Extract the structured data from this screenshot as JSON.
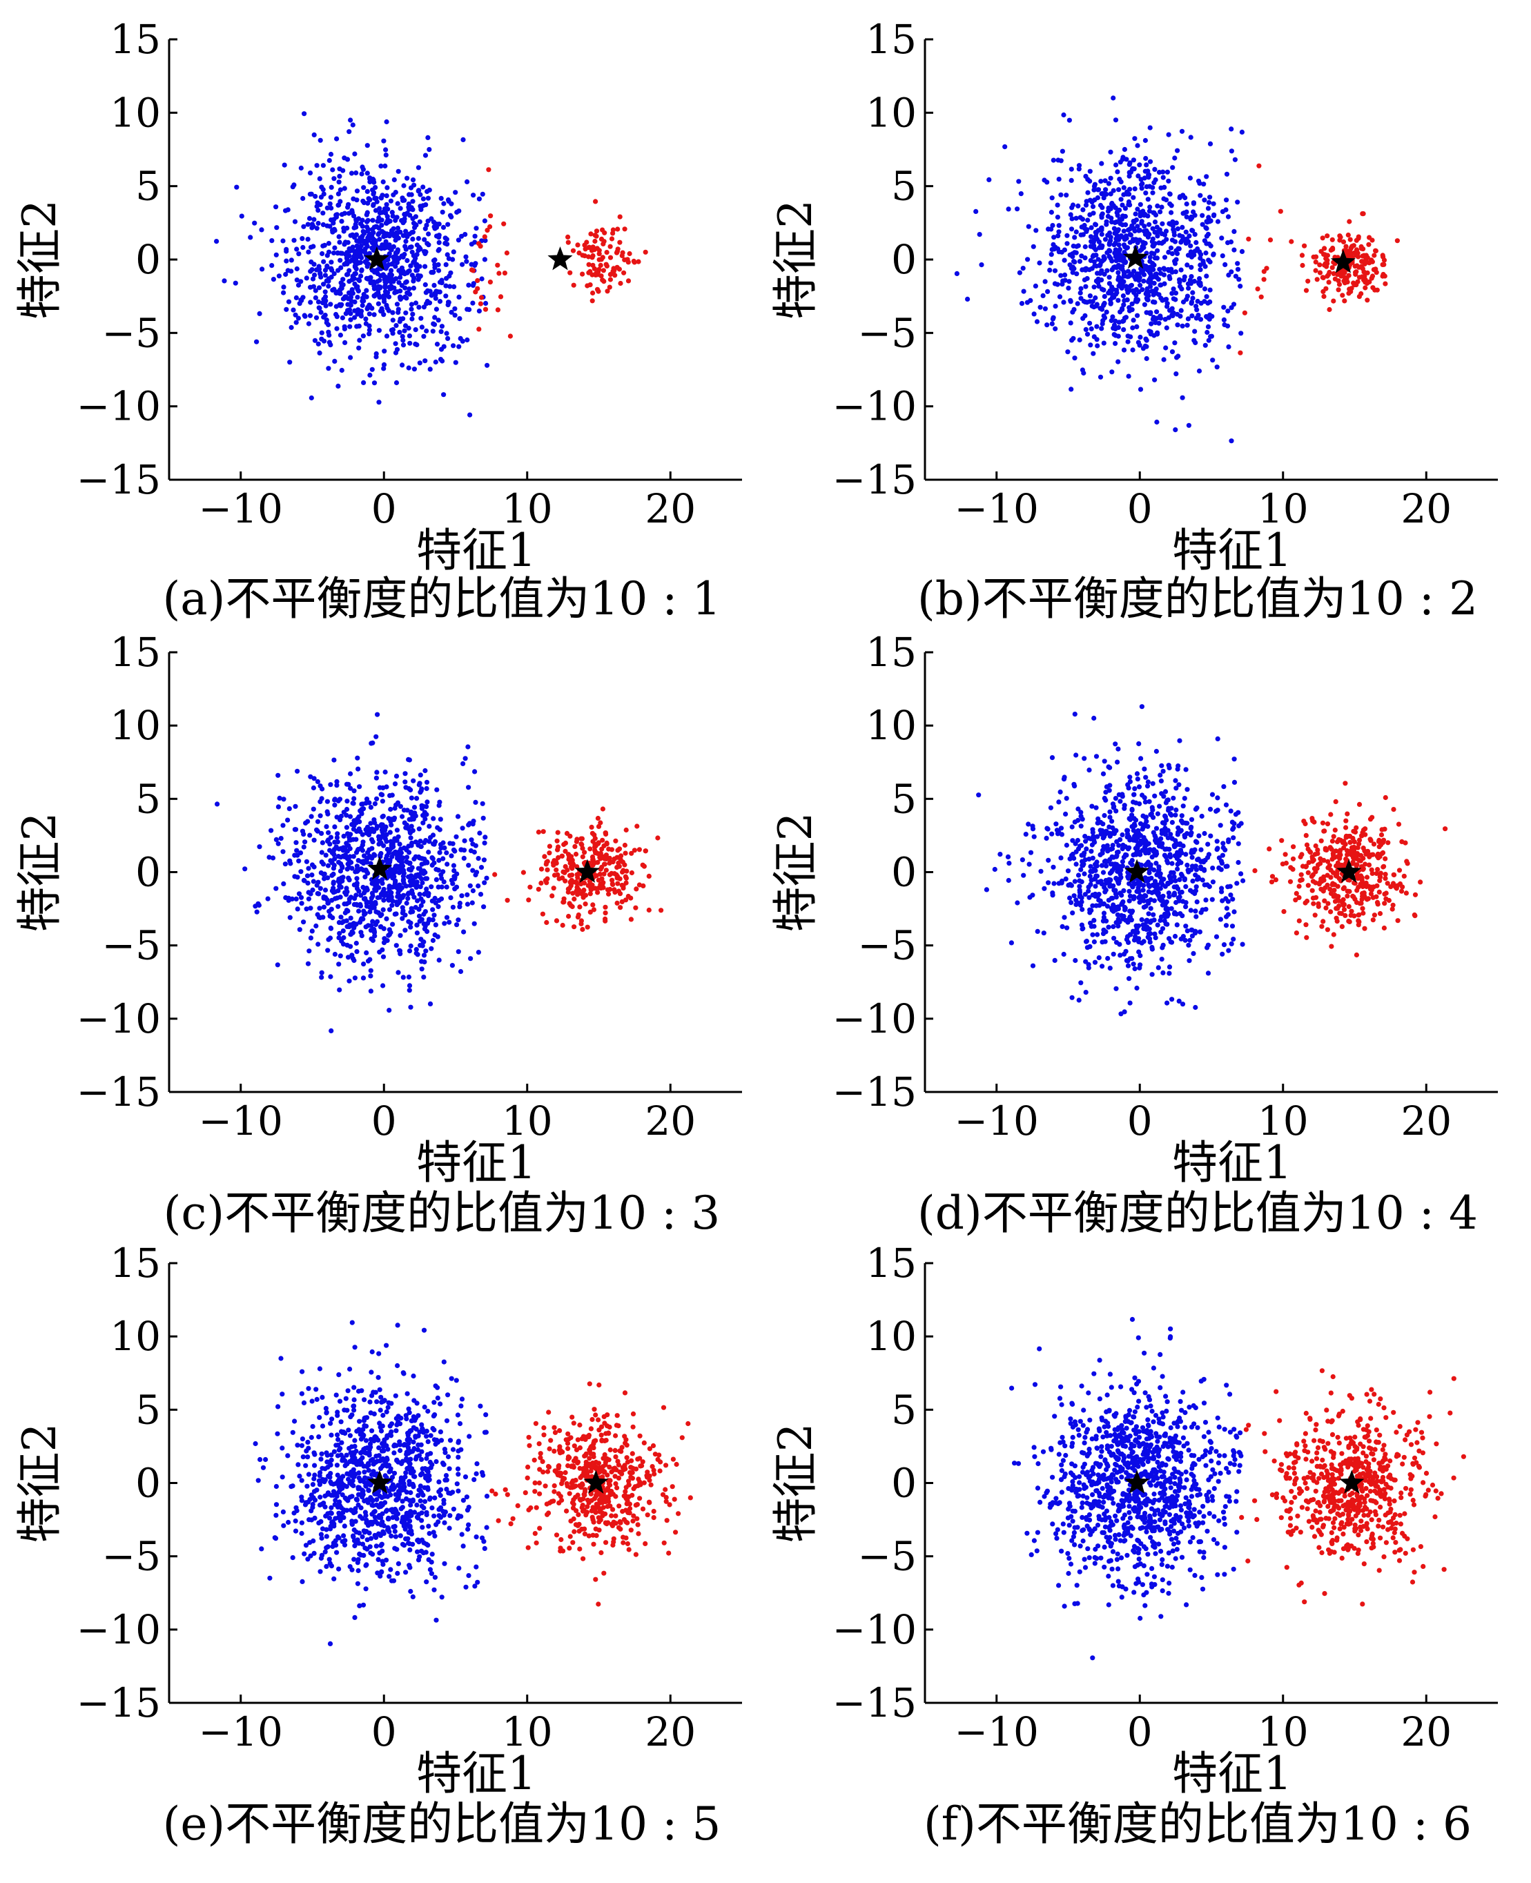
{
  "colors": {
    "majority": "#0a0ae6",
    "minority": "#e61414",
    "center": "#000000",
    "axis": "#000000"
  },
  "chart_data": [
    {
      "type": "scatter",
      "caption": "(a)不平衡度的比值为10 : 1",
      "xlabel": "特征1",
      "ylabel": "特征2",
      "xlim": [
        -15,
        25
      ],
      "ylim": [
        -15,
        15
      ],
      "xticks": [
        "−10",
        "0",
        "10",
        "20"
      ],
      "yticks": [
        "15",
        "10",
        "5",
        "0",
        "−5",
        "−10",
        "−15"
      ],
      "series": [
        {
          "role": "majority",
          "color": "#0a0ae6",
          "n_points": 1000,
          "center": [
            -0.5,
            0
          ],
          "spread": [
            3.2,
            3.4
          ]
        },
        {
          "role": "minority",
          "color": "#e61414",
          "n_points": 100,
          "center": [
            15.3,
            0
          ],
          "spread": [
            1.2,
            1.1
          ],
          "tail": {
            "n_points": 25,
            "x_range": [
              6,
              9
            ]
          }
        }
      ],
      "centers": [
        [
          -0.5,
          0
        ],
        [
          12.3,
          0
        ]
      ]
    },
    {
      "type": "scatter",
      "caption": "(b)不平衡度的比值为10 : 2",
      "xlabel": "特征1",
      "ylabel": "特征2",
      "xlim": [
        -15,
        25
      ],
      "ylim": [
        -15,
        15
      ],
      "xticks": [
        "−10",
        "0",
        "10",
        "20"
      ],
      "yticks": [
        "15",
        "10",
        "5",
        "0",
        "−5",
        "−10",
        "−15"
      ],
      "series": [
        {
          "role": "majority",
          "color": "#0a0ae6",
          "n_points": 1000,
          "center": [
            -0.3,
            0
          ],
          "spread": [
            3.4,
            3.5
          ]
        },
        {
          "role": "minority",
          "color": "#e61414",
          "n_points": 200,
          "center": [
            14.5,
            -0.2
          ],
          "spread": [
            1.3,
            1.2
          ],
          "tail": {
            "n_points": 12,
            "x_range": [
              7,
              11
            ]
          }
        }
      ],
      "centers": [
        [
          -0.3,
          0.1
        ],
        [
          14.2,
          -0.2
        ]
      ]
    },
    {
      "type": "scatter",
      "caption": "(c)不平衡度的比值为10 : 3",
      "xlabel": "特征1",
      "ylabel": "特征2",
      "xlim": [
        -15,
        25
      ],
      "ylim": [
        -15,
        15
      ],
      "xticks": [
        "−10",
        "0",
        "10",
        "20"
      ],
      "yticks": [
        "15",
        "10",
        "5",
        "0",
        "−5",
        "−10",
        "−15"
      ],
      "series": [
        {
          "role": "majority",
          "color": "#0a0ae6",
          "n_points": 1000,
          "center": [
            -0.3,
            0.1
          ],
          "spread": [
            3.3,
            3.3
          ]
        },
        {
          "role": "minority",
          "color": "#e61414",
          "n_points": 300,
          "center": [
            14.2,
            0
          ],
          "spread": [
            1.8,
            1.7
          ]
        }
      ],
      "centers": [
        [
          -0.3,
          0.2
        ],
        [
          14.2,
          0
        ]
      ]
    },
    {
      "type": "scatter",
      "caption": "(d)不平衡度的比值为10 : 4",
      "xlabel": "特征1",
      "ylabel": "特征2",
      "xlim": [
        -15,
        25
      ],
      "ylim": [
        -15,
        15
      ],
      "xticks": [
        "−10",
        "0",
        "10",
        "20"
      ],
      "yticks": [
        "15",
        "10",
        "5",
        "0",
        "−5",
        "−10",
        "−15"
      ],
      "series": [
        {
          "role": "majority",
          "color": "#0a0ae6",
          "n_points": 1000,
          "center": [
            -0.2,
            0
          ],
          "spread": [
            3.3,
            3.3
          ]
        },
        {
          "role": "minority",
          "color": "#e61414",
          "n_points": 400,
          "center": [
            14.6,
            0
          ],
          "spread": [
            2.0,
            2.0
          ]
        }
      ],
      "centers": [
        [
          -0.2,
          0
        ],
        [
          14.6,
          0
        ]
      ]
    },
    {
      "type": "scatter",
      "caption": "(e)不平衡度的比值为10 : 5",
      "xlabel": "特征1",
      "ylabel": "特征2",
      "xlim": [
        -15,
        25
      ],
      "ylim": [
        -15,
        15
      ],
      "xticks": [
        "−10",
        "0",
        "10",
        "20"
      ],
      "yticks": [
        "15",
        "10",
        "5",
        "0",
        "−5",
        "−10",
        "−15"
      ],
      "series": [
        {
          "role": "majority",
          "color": "#0a0ae6",
          "n_points": 1000,
          "center": [
            -0.3,
            0
          ],
          "spread": [
            3.2,
            3.3
          ]
        },
        {
          "role": "minority",
          "color": "#e61414",
          "n_points": 500,
          "center": [
            14.8,
            -0.1
          ],
          "spread": [
            2.4,
            2.2
          ]
        }
      ],
      "centers": [
        [
          -0.3,
          0
        ],
        [
          14.8,
          0
        ]
      ]
    },
    {
      "type": "scatter",
      "caption": "(f)不平衡度的比值为10 : 6",
      "xlabel": "特征1",
      "ylabel": "特征2",
      "xlim": [
        -15,
        25
      ],
      "ylim": [
        -15,
        15
      ],
      "xticks": [
        "−10",
        "0",
        "10",
        "20"
      ],
      "yticks": [
        "15",
        "10",
        "5",
        "0",
        "−5",
        "−10",
        "−15"
      ],
      "series": [
        {
          "role": "majority",
          "color": "#0a0ae6",
          "n_points": 1000,
          "center": [
            -0.2,
            0
          ],
          "spread": [
            3.2,
            3.3
          ]
        },
        {
          "role": "minority",
          "color": "#e61414",
          "n_points": 600,
          "center": [
            14.8,
            0
          ],
          "spread": [
            2.6,
            2.6
          ]
        }
      ],
      "centers": [
        [
          -0.2,
          0
        ],
        [
          14.8,
          0
        ]
      ]
    }
  ]
}
